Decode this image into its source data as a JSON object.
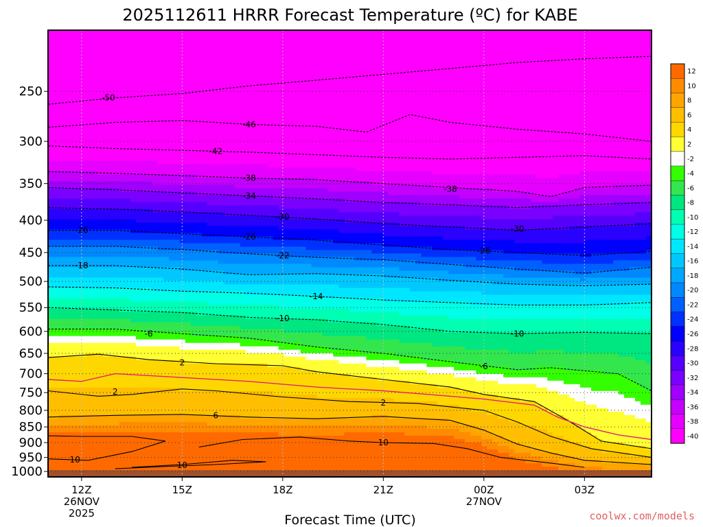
{
  "chart_data": {
    "type": "contour",
    "title": "2025112611 HRRR Forecast Temperature (ºC) for KABE",
    "xlabel": "Forecast Time (UTC)",
    "ylabel": "",
    "x_ticks": [
      {
        "hour": 12,
        "label": "12Z",
        "date": "26NOV",
        "year": "2025"
      },
      {
        "hour": 15,
        "label": "15Z",
        "date": "",
        "year": ""
      },
      {
        "hour": 18,
        "label": "18Z",
        "date": "",
        "year": ""
      },
      {
        "hour": 21,
        "label": "21Z",
        "date": "",
        "year": ""
      },
      {
        "hour": 24,
        "label": "00Z",
        "date": "27NOV",
        "year": ""
      },
      {
        "hour": 27,
        "label": "03Z",
        "date": "",
        "year": ""
      }
    ],
    "xlim": [
      11,
      29
    ],
    "y_ticks": [
      250,
      300,
      350,
      400,
      450,
      500,
      550,
      600,
      650,
      700,
      750,
      800,
      850,
      900,
      950,
      1000
    ],
    "ylim": [
      1020,
      200
    ],
    "y_scale": "log",
    "colorbar": {
      "levels": [
        12,
        10,
        8,
        6,
        4,
        2,
        -2,
        -4,
        -6,
        -8,
        -10,
        -12,
        -14,
        -16,
        -18,
        -20,
        -22,
        -24,
        -26,
        -28,
        -30,
        -32,
        -34,
        -36,
        -38,
        -40
      ],
      "colors": [
        "#ff6a00",
        "#ff8c00",
        "#ffa500",
        "#ffbf00",
        "#ffd700",
        "#ffff33",
        "#ffffff",
        "#33ff00",
        "#33e64d",
        "#00e680",
        "#00ffb3",
        "#00ffe6",
        "#00e6ff",
        "#00c8ff",
        "#00a8ff",
        "#0088ff",
        "#0060ff",
        "#0030ff",
        "#0000ff",
        "#2a00ff",
        "#5500ff",
        "#7a00ff",
        "#9f00ff",
        "#c400ff",
        "#e600ff",
        "#ff00ff"
      ]
    },
    "isotherms": [
      {
        "t": -50,
        "p": [
          [
            11,
            262
          ],
          [
            13,
            256
          ],
          [
            15,
            252
          ],
          [
            17,
            245
          ],
          [
            19,
            240
          ],
          [
            21,
            235
          ],
          [
            23,
            230
          ],
          [
            25,
            225
          ],
          [
            27,
            222
          ],
          [
            29,
            220
          ]
        ]
      },
      {
        "t": -46,
        "p": [
          [
            11,
            285
          ],
          [
            13,
            280
          ],
          [
            15,
            278
          ],
          [
            17,
            282
          ],
          [
            19,
            284
          ],
          [
            20.5,
            290
          ],
          [
            21.8,
            272
          ],
          [
            23,
            280
          ],
          [
            25,
            287
          ],
          [
            27,
            292
          ],
          [
            29,
            300
          ]
        ]
      },
      {
        "t": -42,
        "p": [
          [
            11,
            305
          ],
          [
            13,
            308
          ],
          [
            15,
            310
          ],
          [
            17,
            312
          ],
          [
            19,
            315
          ],
          [
            21,
            318
          ],
          [
            23,
            320
          ],
          [
            25,
            318
          ],
          [
            27,
            316
          ],
          [
            29,
            320
          ]
        ]
      },
      {
        "t": -38,
        "p": [
          [
            11,
            335
          ],
          [
            13,
            337
          ],
          [
            15,
            340
          ],
          [
            17,
            343
          ],
          [
            19,
            345
          ],
          [
            21,
            350
          ],
          [
            23,
            355
          ],
          [
            25,
            360
          ],
          [
            26,
            367
          ],
          [
            27,
            355
          ],
          [
            29,
            352
          ]
        ]
      },
      {
        "t": -34,
        "p": [
          [
            11,
            355
          ],
          [
            13,
            358
          ],
          [
            15,
            362
          ],
          [
            17,
            366
          ],
          [
            19,
            370
          ],
          [
            21,
            375
          ],
          [
            23,
            378
          ],
          [
            25,
            382
          ],
          [
            27,
            378
          ],
          [
            29,
            375
          ]
        ]
      },
      {
        "t": -30,
        "p": [
          [
            11,
            382
          ],
          [
            13,
            384
          ],
          [
            15,
            388
          ],
          [
            17,
            393
          ],
          [
            19,
            398
          ],
          [
            21,
            405
          ],
          [
            23,
            410
          ],
          [
            25,
            415
          ],
          [
            27,
            410
          ],
          [
            29,
            405
          ]
        ]
      },
      {
        "t": -26,
        "p": [
          [
            11,
            415
          ],
          [
            13,
            415
          ],
          [
            15,
            420
          ],
          [
            17,
            425
          ],
          [
            19,
            430
          ],
          [
            21,
            438
          ],
          [
            23,
            445
          ],
          [
            25,
            450
          ],
          [
            27,
            455
          ],
          [
            29,
            448
          ]
        ]
      },
      {
        "t": -22,
        "p": [
          [
            11,
            440
          ],
          [
            13,
            440
          ],
          [
            15,
            445
          ],
          [
            17,
            452
          ],
          [
            19,
            458
          ],
          [
            21,
            462
          ],
          [
            23,
            470
          ],
          [
            25,
            478
          ],
          [
            27,
            485
          ],
          [
            29,
            475
          ]
        ]
      },
      {
        "t": -18,
        "p": [
          [
            11,
            472
          ],
          [
            13,
            472
          ],
          [
            15,
            478
          ],
          [
            17,
            488
          ],
          [
            19,
            486
          ],
          [
            21,
            490
          ],
          [
            23,
            498
          ],
          [
            25,
            505
          ],
          [
            27,
            508
          ],
          [
            29,
            505
          ]
        ]
      },
      {
        "t": -14,
        "p": [
          [
            11,
            510
          ],
          [
            13,
            512
          ],
          [
            15,
            518
          ],
          [
            17,
            522
          ],
          [
            19,
            528
          ],
          [
            21,
            535
          ],
          [
            23,
            540
          ],
          [
            25,
            545
          ],
          [
            27,
            545
          ],
          [
            29,
            540
          ]
        ]
      },
      {
        "t": -10,
        "p": [
          [
            11,
            550
          ],
          [
            13,
            555
          ],
          [
            15,
            560
          ],
          [
            17,
            570
          ],
          [
            19,
            575
          ],
          [
            21,
            585
          ],
          [
            23,
            600
          ],
          [
            25,
            605
          ],
          [
            27,
            602
          ],
          [
            29,
            605
          ]
        ]
      },
      {
        "t": -6,
        "p": [
          [
            11,
            595
          ],
          [
            13,
            595
          ],
          [
            15,
            605
          ],
          [
            17,
            615
          ],
          [
            19,
            635
          ],
          [
            21,
            650
          ],
          [
            23,
            670
          ],
          [
            25,
            690
          ],
          [
            26,
            685
          ],
          [
            28,
            700
          ],
          [
            29,
            745
          ]
        ]
      },
      {
        "t": 2,
        "p": [
          [
            11,
            660
          ],
          [
            12.5,
            652
          ],
          [
            14,
            665
          ],
          [
            16,
            675
          ],
          [
            18,
            680
          ],
          [
            19,
            695
          ],
          [
            21,
            715
          ],
          [
            23,
            735
          ],
          [
            24,
            755
          ],
          [
            25.5,
            775
          ],
          [
            26.5,
            830
          ],
          [
            27.5,
            895
          ],
          [
            29,
            920
          ]
        ]
      },
      {
        "t": 2,
        "p": [
          [
            11,
            745
          ],
          [
            12.5,
            760
          ],
          [
            13.5,
            755
          ],
          [
            15,
            740
          ],
          [
            16,
            745
          ],
          [
            18,
            762
          ],
          [
            20,
            775
          ],
          [
            22,
            780
          ],
          [
            23,
            790
          ],
          [
            24,
            800
          ],
          [
            25,
            835
          ],
          [
            26,
            880
          ],
          [
            27.2,
            920
          ],
          [
            29,
            950
          ]
        ]
      },
      {
        "t": 0,
        "color": "#e0207a",
        "dash": false,
        "p": [
          [
            11,
            715
          ],
          [
            12,
            720
          ],
          [
            13,
            700
          ],
          [
            15,
            710
          ],
          [
            17,
            720
          ],
          [
            19,
            735
          ],
          [
            21,
            745
          ],
          [
            23,
            760
          ],
          [
            24,
            768
          ],
          [
            25.5,
            785
          ],
          [
            26.2,
            820
          ],
          [
            27,
            850
          ],
          [
            28,
            875
          ],
          [
            29,
            890
          ]
        ]
      },
      {
        "t": 6,
        "p": [
          [
            11,
            820
          ],
          [
            13,
            815
          ],
          [
            15,
            812
          ],
          [
            17,
            820
          ],
          [
            19,
            825
          ],
          [
            21,
            818
          ],
          [
            23,
            830
          ],
          [
            24,
            860
          ],
          [
            25,
            905
          ],
          [
            26,
            935
          ],
          [
            27,
            960
          ],
          [
            29,
            975
          ]
        ]
      },
      {
        "t": 10,
        "p": [
          [
            11,
            955
          ],
          [
            12.2,
            960
          ],
          [
            13.5,
            930
          ],
          [
            14.5,
            895
          ],
          [
            13.5,
            880
          ],
          [
            12,
            880
          ],
          [
            11,
            878
          ]
        ]
      },
      {
        "t": 10,
        "p": [
          [
            15.5,
            915
          ],
          [
            16.8,
            890
          ],
          [
            18.5,
            882
          ],
          [
            20,
            895
          ],
          [
            21,
            900
          ],
          [
            22.5,
            903
          ],
          [
            23.5,
            920
          ],
          [
            24.5,
            950
          ],
          [
            26,
            970
          ],
          [
            27,
            985
          ]
        ]
      },
      {
        "t": 10,
        "p": [
          [
            13,
            990
          ],
          [
            14.5,
            982
          ],
          [
            16,
            975
          ],
          [
            17.5,
            965
          ],
          [
            16.5,
            960
          ],
          [
            15,
            975
          ],
          [
            13.5,
            985
          ]
        ]
      }
    ],
    "contour_labels": [
      {
        "text": "-50",
        "x": 12.8,
        "p": 256
      },
      {
        "text": "-46",
        "x": 17,
        "p": 282
      },
      {
        "text": "-42",
        "x": 16,
        "p": 311
      },
      {
        "text": "-38",
        "x": 17,
        "p": 343
      },
      {
        "text": "-38",
        "x": 23,
        "p": 357
      },
      {
        "text": "-34",
        "x": 17,
        "p": 366
      },
      {
        "text": "-30",
        "x": 18,
        "p": 395
      },
      {
        "text": "-30",
        "x": 25,
        "p": 413
      },
      {
        "text": "-26",
        "x": 12,
        "p": 415
      },
      {
        "text": "-26",
        "x": 17,
        "p": 425
      },
      {
        "text": "-26",
        "x": 24,
        "p": 447
      },
      {
        "text": "-22",
        "x": 18,
        "p": 455
      },
      {
        "text": "-18",
        "x": 12,
        "p": 472
      },
      {
        "text": "-14",
        "x": 19,
        "p": 528
      },
      {
        "text": "-10",
        "x": 18,
        "p": 572
      },
      {
        "text": "-10",
        "x": 25,
        "p": 605
      },
      {
        "text": "-6",
        "x": 14,
        "p": 605
      },
      {
        "text": "-6",
        "x": 24,
        "p": 682
      },
      {
        "text": "2",
        "x": 15,
        "p": 672
      },
      {
        "text": "2",
        "x": 13,
        "p": 748
      },
      {
        "text": "2",
        "x": 21,
        "p": 778
      },
      {
        "text": "6",
        "x": 16,
        "p": 815
      },
      {
        "text": "10",
        "x": 11.8,
        "p": 958
      },
      {
        "text": "10",
        "x": 15,
        "p": 978
      },
      {
        "text": "10",
        "x": 21,
        "p": 900
      }
    ],
    "ground_color": "#a0522d",
    "ground_p": 995,
    "credit": "coolwx.com/models"
  }
}
